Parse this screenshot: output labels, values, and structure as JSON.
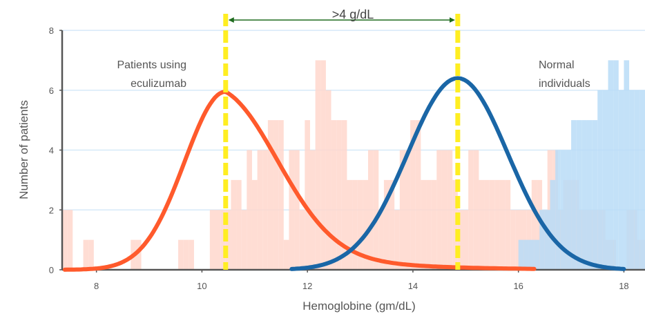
{
  "chart_data": {
    "type": "area",
    "xlabel": "Hemoglobine (gm/dL)",
    "ylabel": "Number of patients",
    "xlim": [
      7.35,
      18.4
    ],
    "ylim": [
      0,
      8
    ],
    "x_ticks": [
      "8",
      "10",
      "12",
      "14",
      "16",
      "18"
    ],
    "y_ticks": [
      "0",
      "2",
      "4",
      "6",
      "8"
    ],
    "grid": true,
    "series": [
      {
        "key": "eculizumab",
        "color": "#ff5a2c",
        "hist_color": "#ffd7cc",
        "curve": {
          "mean": 10.45,
          "peak": 5.95,
          "left_sd": 0.78,
          "right_sd": 1.05,
          "x_start": 7.4,
          "x_end": 16.3
        },
        "hist_start": 7.35,
        "hist_bin": 0.1,
        "hist_values": [
          2,
          2,
          0,
          0,
          1,
          1,
          0,
          0,
          0,
          0,
          0,
          0,
          0,
          1,
          1,
          0,
          0,
          0,
          0,
          0,
          0,
          0,
          1,
          1,
          1,
          0,
          0,
          0,
          2,
          2,
          2,
          2,
          3,
          3,
          2,
          4,
          3,
          4,
          4,
          5,
          5,
          5,
          1,
          4,
          4,
          2,
          5,
          4,
          7,
          7,
          6,
          5,
          5,
          5,
          3,
          3,
          3,
          3,
          4,
          4,
          2,
          3,
          3,
          2,
          4,
          4,
          5,
          5,
          3,
          3,
          3,
          4,
          4,
          4,
          3,
          2,
          2,
          4,
          4,
          3,
          3,
          3,
          3,
          3,
          3,
          2,
          2,
          2,
          2,
          3,
          3,
          2,
          4,
          4,
          2,
          3,
          3,
          3,
          2,
          2,
          2,
          2,
          2,
          1,
          1,
          0,
          0,
          2,
          2,
          1,
          1,
          1,
          1,
          1,
          1,
          1,
          1,
          1,
          1,
          1,
          1,
          1,
          1,
          1,
          1,
          1,
          1,
          1,
          1,
          1,
          1,
          1,
          0,
          0,
          0,
          0,
          0,
          0,
          0,
          0,
          0,
          0,
          0,
          0,
          0,
          0,
          0,
          0,
          0,
          0,
          0,
          0,
          0,
          0,
          0,
          0,
          0,
          0,
          0,
          0,
          0,
          0,
          0,
          1,
          1,
          0,
          0,
          0,
          0,
          0,
          0,
          0,
          0,
          0,
          0,
          0,
          0,
          0,
          0,
          0,
          0,
          0,
          0,
          0,
          0,
          0,
          0,
          0,
          0,
          0,
          0,
          0,
          0,
          0,
          0,
          0
        ]
      },
      {
        "key": "normal",
        "color": "#1a66a6",
        "hist_color": "#b8dcf7",
        "curve": {
          "mean": 14.85,
          "peak": 6.4,
          "sd": 0.95,
          "x_start": 11.7,
          "x_end": 18.0
        },
        "hist_start": 11.0,
        "hist_bin": 0.1,
        "hist_values": [
          0,
          0,
          0,
          0,
          0,
          0,
          0,
          0,
          0,
          0,
          0,
          0,
          0,
          0,
          0,
          0,
          0,
          0,
          0,
          0,
          0,
          0,
          0,
          0,
          0,
          0,
          0,
          0,
          0,
          0,
          0,
          0,
          0,
          0,
          0,
          0,
          0,
          0,
          0,
          0,
          0,
          0,
          0,
          0,
          0,
          0,
          0,
          0,
          0,
          0,
          1,
          1,
          1,
          1,
          2,
          2,
          3,
          4,
          4,
          4,
          5,
          5,
          5,
          5,
          5,
          6,
          6,
          7,
          7,
          6,
          7,
          6,
          6,
          6,
          6,
          5,
          5,
          5,
          5,
          4,
          4,
          3,
          3,
          3,
          2,
          2,
          2,
          2,
          1,
          1,
          1,
          1,
          1,
          1,
          0,
          1,
          1,
          1,
          1,
          1,
          1,
          1,
          1,
          0,
          0,
          1,
          1,
          0,
          0,
          0,
          0,
          0,
          0,
          0,
          0
        ]
      }
    ],
    "reference_lines": [
      10.45,
      14.85
    ],
    "difference_label": ">4 g/dL",
    "annotations": [
      {
        "lines": [
          "Patients using",
          "eculizumab"
        ]
      },
      {
        "lines": [
          "Normal",
          "individuals"
        ]
      }
    ]
  }
}
